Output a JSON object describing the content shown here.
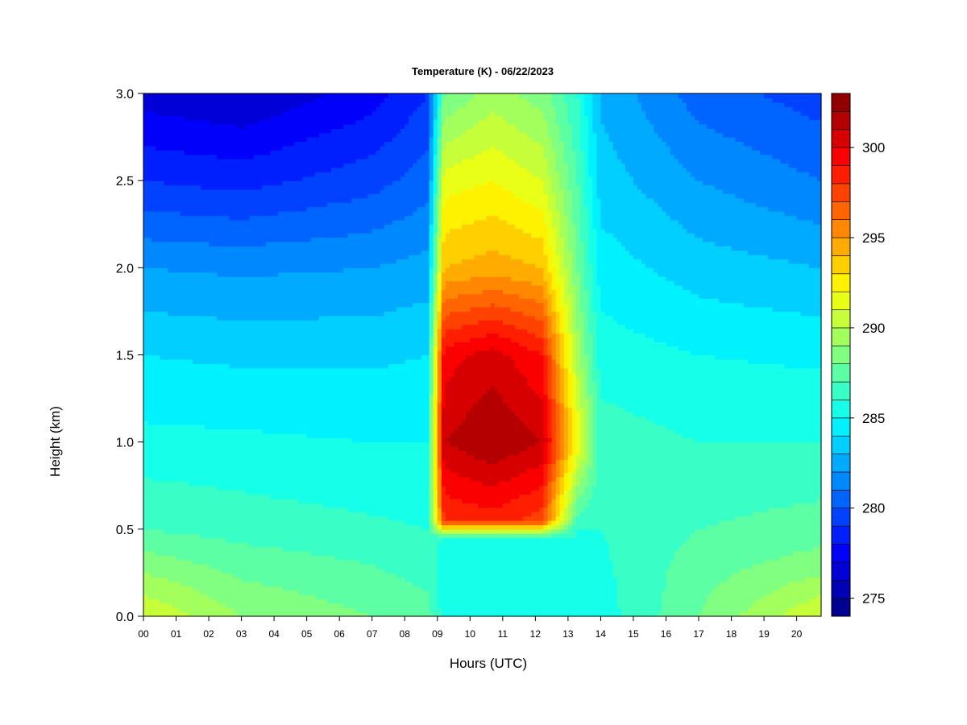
{
  "chart_data": {
    "type": "heatmap",
    "title": "Temperature (K) - 06/22/2023",
    "xlabel": "Hours (UTC)",
    "ylabel": "Height (km)",
    "xlim": [
      0,
      20.75
    ],
    "ylim": [
      0.0,
      3.0
    ],
    "x_ticks": [
      "00",
      "01",
      "02",
      "03",
      "04",
      "05",
      "06",
      "07",
      "08",
      "09",
      "10",
      "11",
      "12",
      "13",
      "14",
      "15",
      "16",
      "17",
      "18",
      "19",
      "20"
    ],
    "y_ticks": [
      "0.0",
      "0.5",
      "1.0",
      "1.5",
      "2.0",
      "2.5",
      "3.0"
    ],
    "colorbar": {
      "range": [
        274,
        303
      ],
      "step": 1,
      "ticks": [
        275,
        280,
        285,
        290,
        295,
        300
      ],
      "colormap": "jet"
    },
    "grid": false,
    "profiles": [
      {
        "hour": 0,
        "heights": [
          0.0,
          0.3,
          0.5,
          1.0,
          1.5,
          2.0,
          2.5,
          3.0
        ],
        "temperature": [
          291.0,
          288.6,
          287.0,
          285.3,
          284.0,
          282.0,
          279.0,
          276.5
        ]
      },
      {
        "hour": 3,
        "heights": [
          0.0,
          0.3,
          0.5,
          1.0,
          1.5,
          2.0,
          2.5,
          3.0
        ],
        "temperature": [
          289.0,
          287.6,
          286.6,
          285.2,
          283.8,
          281.8,
          278.6,
          276.0
        ]
      },
      {
        "hour": 7,
        "heights": [
          0.0,
          0.3,
          0.5,
          1.0,
          1.5,
          2.0,
          2.5,
          3.0
        ],
        "temperature": [
          288.0,
          287.0,
          286.2,
          285.0,
          283.8,
          282.0,
          279.6,
          277.5
        ]
      },
      {
        "hour": 8.7,
        "heights": [
          0.0,
          0.3,
          0.5,
          1.0,
          1.5,
          2.0,
          2.5,
          3.0
        ],
        "temperature": [
          287.5,
          286.5,
          286.0,
          285.0,
          284.0,
          282.4,
          280.5,
          279.0
        ]
      },
      {
        "hour": 9.2,
        "heights": [
          0.0,
          0.3,
          0.45,
          0.55,
          1.0,
          1.5,
          2.0,
          2.5,
          3.0
        ],
        "temperature": [
          285.5,
          285.5,
          286.0,
          298.0,
          301.0,
          299.5,
          294.0,
          291.5,
          288.0
        ]
      },
      {
        "hour": 10.7,
        "heights": [
          0.0,
          0.3,
          0.45,
          0.55,
          1.0,
          1.5,
          2.0,
          2.5,
          3.0
        ],
        "temperature": [
          285.5,
          285.5,
          286.0,
          298.5,
          302.0,
          300.5,
          294.5,
          292.0,
          289.5
        ]
      },
      {
        "hour": 12.2,
        "heights": [
          0.0,
          0.3,
          0.45,
          0.55,
          1.0,
          1.5,
          2.0,
          2.5,
          3.0
        ],
        "temperature": [
          285.5,
          285.5,
          286.0,
          297.5,
          301.0,
          299.0,
          294.0,
          291.0,
          288.5
        ]
      },
      {
        "hour": 13.3,
        "heights": [
          0.0,
          0.3,
          0.5,
          1.0,
          1.5,
          2.0,
          2.5,
          3.0
        ],
        "temperature": [
          285.5,
          285.5,
          286.0,
          292.0,
          289.5,
          288.0,
          287.0,
          286.0
        ]
      },
      {
        "hour": 14,
        "heights": [
          0.0,
          0.3,
          0.5,
          1.0,
          1.5,
          2.0,
          2.5,
          3.0
        ],
        "temperature": [
          285.5,
          285.8,
          286.0,
          286.5,
          285.5,
          284.5,
          283.5,
          282.8
        ]
      },
      {
        "hour": 17,
        "heights": [
          0.0,
          0.3,
          0.5,
          1.0,
          1.5,
          2.0,
          2.5,
          3.0
        ],
        "temperature": [
          288.0,
          287.5,
          287.0,
          286.0,
          285.0,
          283.5,
          282.0,
          280.5
        ]
      },
      {
        "hour": 20.75,
        "heights": [
          0.0,
          0.3,
          0.5,
          1.0,
          1.5,
          2.0,
          2.5,
          3.0
        ],
        "temperature": [
          291.0,
          288.5,
          287.5,
          286.0,
          284.8,
          283.0,
          281.0,
          279.5
        ]
      }
    ]
  }
}
